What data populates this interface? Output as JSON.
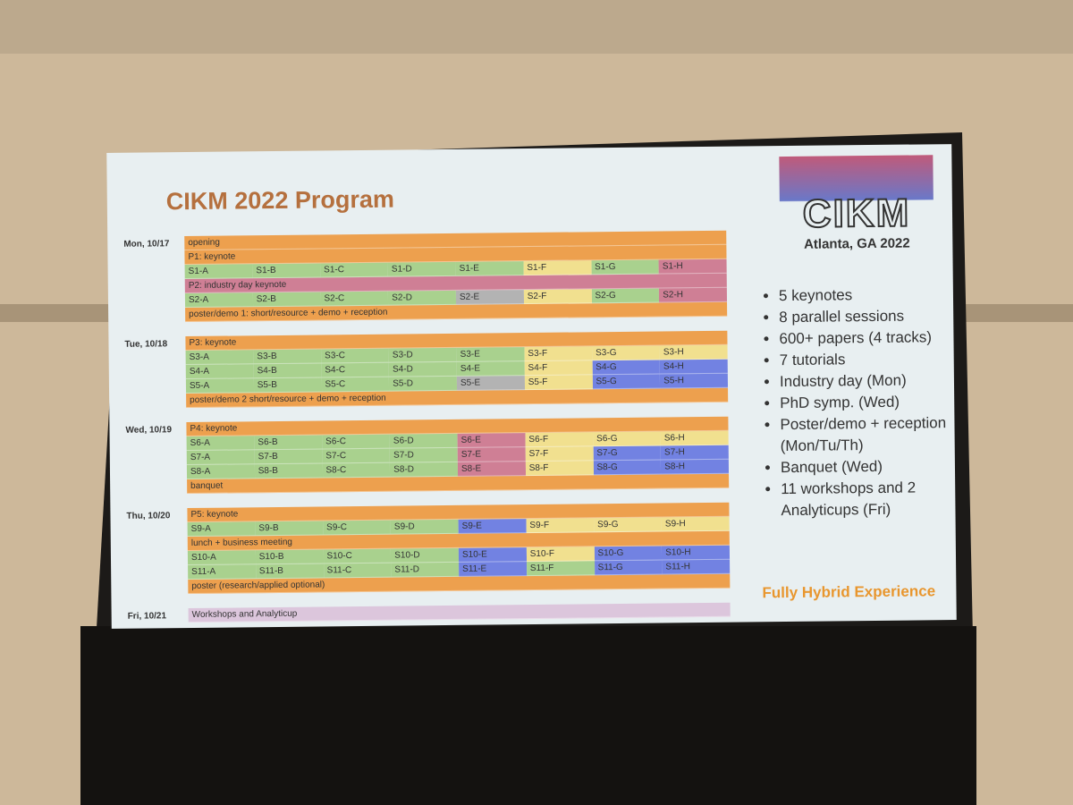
{
  "slide": {
    "title": "CIKM 2022 Program",
    "logo": {
      "name": "CIKM",
      "place": "Atlanta, GA 2022"
    },
    "colors": {
      "orange": "#eda04e",
      "green": "#a9d18e",
      "yellow": "#f1e08f",
      "pink": "#cf7f95",
      "blue": "#7282e2",
      "gray": "#b3b3b3",
      "lavender": "#dcc6dc"
    },
    "days": [
      {
        "label": "Mon, 10/17",
        "rows": [
          {
            "band": "opening",
            "color": "orange"
          },
          {
            "band": "P1: keynote",
            "color": "orange"
          },
          {
            "cells": [
              "S1-A",
              "S1-B",
              "S1-C",
              "S1-D",
              "S1-E",
              "S1-F",
              "S1-G",
              "S1-H"
            ],
            "colors": [
              "green",
              "green",
              "green",
              "green",
              "green",
              "yellow",
              "green",
              "pink"
            ]
          },
          {
            "band": "P2: industry day keynote",
            "color": "pink"
          },
          {
            "cells": [
              "S2-A",
              "S2-B",
              "S2-C",
              "S2-D",
              "S2-E",
              "S2-F",
              "S2-G",
              "S2-H"
            ],
            "colors": [
              "green",
              "green",
              "green",
              "green",
              "gray",
              "yellow",
              "green",
              "pink"
            ]
          },
          {
            "band": "poster/demo 1: short/resource + demo + reception",
            "color": "orange"
          }
        ]
      },
      {
        "label": "Tue, 10/18",
        "rows": [
          {
            "band": "P3: keynote",
            "color": "orange"
          },
          {
            "cells": [
              "S3-A",
              "S3-B",
              "S3-C",
              "S3-D",
              "S3-E",
              "S3-F",
              "S3-G",
              "S3-H"
            ],
            "colors": [
              "green",
              "green",
              "green",
              "green",
              "green",
              "yellow",
              "yellow",
              "yellow"
            ]
          },
          {
            "cells": [
              "S4-A",
              "S4-B",
              "S4-C",
              "S4-D",
              "S4-E",
              "S4-F",
              "S4-G",
              "S4-H"
            ],
            "colors": [
              "green",
              "green",
              "green",
              "green",
              "green",
              "yellow",
              "blue",
              "blue"
            ]
          },
          {
            "cells": [
              "S5-A",
              "S5-B",
              "S5-C",
              "S5-D",
              "S5-E",
              "S5-F",
              "S5-G",
              "S5-H"
            ],
            "colors": [
              "green",
              "green",
              "green",
              "green",
              "gray",
              "yellow",
              "blue",
              "blue"
            ]
          },
          {
            "band": "poster/demo 2 short/resource + demo + reception",
            "color": "orange"
          }
        ]
      },
      {
        "label": "Wed, 10/19",
        "rows": [
          {
            "band": "P4: keynote",
            "color": "orange"
          },
          {
            "cells": [
              "S6-A",
              "S6-B",
              "S6-C",
              "S6-D",
              "S6-E",
              "S6-F",
              "S6-G",
              "S6-H"
            ],
            "colors": [
              "green",
              "green",
              "green",
              "green",
              "pink",
              "yellow",
              "yellow",
              "yellow"
            ]
          },
          {
            "cells": [
              "S7-A",
              "S7-B",
              "S7-C",
              "S7-D",
              "S7-E",
              "S7-F",
              "S7-G",
              "S7-H"
            ],
            "colors": [
              "green",
              "green",
              "green",
              "green",
              "pink",
              "yellow",
              "blue",
              "blue"
            ]
          },
          {
            "cells": [
              "S8-A",
              "S8-B",
              "S8-C",
              "S8-D",
              "S8-E",
              "S8-F",
              "S8-G",
              "S8-H"
            ],
            "colors": [
              "green",
              "green",
              "green",
              "green",
              "pink",
              "yellow",
              "blue",
              "blue"
            ]
          },
          {
            "band": "banquet",
            "color": "orange"
          }
        ]
      },
      {
        "label": "Thu, 10/20",
        "rows": [
          {
            "band": "P5: keynote",
            "color": "orange"
          },
          {
            "cells": [
              "S9-A",
              "S9-B",
              "S9-C",
              "S9-D",
              "S9-E",
              "S9-F",
              "S9-G",
              "S9-H"
            ],
            "colors": [
              "green",
              "green",
              "green",
              "green",
              "blue",
              "yellow",
              "yellow",
              "yellow"
            ]
          },
          {
            "band": "lunch + business meeting",
            "color": "orange"
          },
          {
            "cells": [
              "S10-A",
              "S10-B",
              "S10-C",
              "S10-D",
              "S10-E",
              "S10-F",
              "S10-G",
              "S10-H"
            ],
            "colors": [
              "green",
              "green",
              "green",
              "green",
              "blue",
              "yellow",
              "blue",
              "blue"
            ]
          },
          {
            "cells": [
              "S11-A",
              "S11-B",
              "S11-C",
              "S11-D",
              "S11-E",
              "S11-F",
              "S11-G",
              "S11-H"
            ],
            "colors": [
              "green",
              "green",
              "green",
              "green",
              "blue",
              "green",
              "blue",
              "blue"
            ]
          },
          {
            "band": "poster (research/applied optional)",
            "color": "orange"
          }
        ]
      },
      {
        "label": "Fri, 10/21",
        "rows": [
          {
            "band": "Workshops and Analyticup",
            "color": "lavender"
          }
        ]
      }
    ],
    "bullets": [
      "5 keynotes",
      "8 parallel sessions",
      "600+ papers (4 tracks)",
      "7 tutorials",
      "Industry day (Mon)",
      "PhD symp. (Wed)",
      "Poster/demo + reception (Mon/Tu/Th)",
      "Banquet (Wed)",
      "11 workshops and 2 Analyticups (Fri)"
    ],
    "footer": "Fully Hybrid Experience"
  }
}
